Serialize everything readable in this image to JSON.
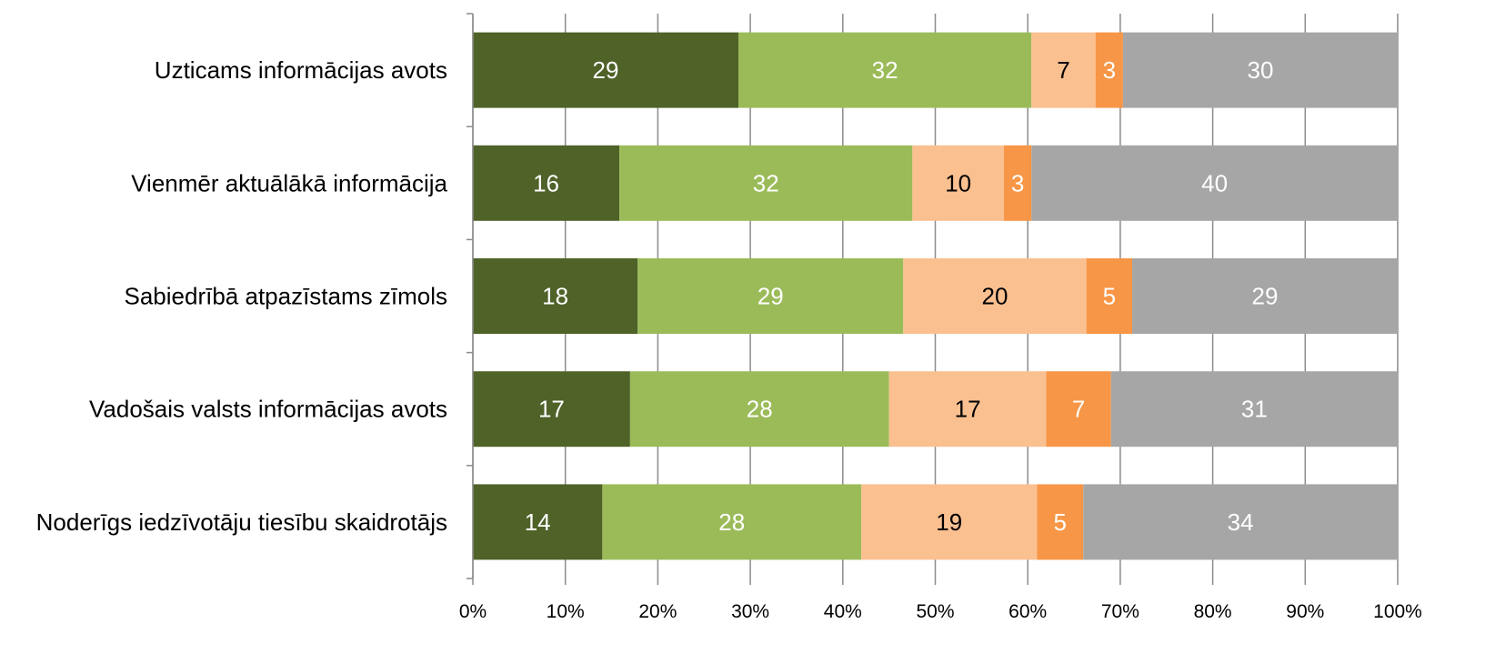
{
  "chart_data": {
    "type": "bar",
    "orientation": "horizontal",
    "stacked": "percent",
    "categories": [
      "Uzticams informācijas avots",
      "Vienmēr aktuālākā informācija",
      "Sabiedrībā atpazīstams zīmols",
      "Vadošais valsts informācijas avots",
      "Noderīgs iedzīvotāju tiesību skaidrotājs"
    ],
    "series": [
      {
        "color": "#4f6228",
        "label_color": "#ffffff",
        "values": [
          29,
          16,
          18,
          17,
          14
        ]
      },
      {
        "color": "#9bbb59",
        "label_color": "#ffffff",
        "values": [
          32,
          32,
          29,
          28,
          28
        ]
      },
      {
        "color": "#fac090",
        "label_color": "#000000",
        "values": [
          7,
          10,
          20,
          17,
          19
        ]
      },
      {
        "color": "#f79646",
        "label_color": "#ffffff",
        "values": [
          3,
          3,
          5,
          7,
          5
        ]
      },
      {
        "color": "#a6a6a6",
        "label_color": "#ffffff",
        "values": [
          30,
          40,
          29,
          31,
          34
        ]
      }
    ],
    "x_ticks": [
      "0%",
      "10%",
      "20%",
      "30%",
      "40%",
      "50%",
      "60%",
      "70%",
      "80%",
      "90%",
      "100%"
    ],
    "xlim": [
      0,
      100
    ],
    "grid": "vertical",
    "legend": "none",
    "title": "",
    "xlabel": "",
    "ylabel": ""
  }
}
